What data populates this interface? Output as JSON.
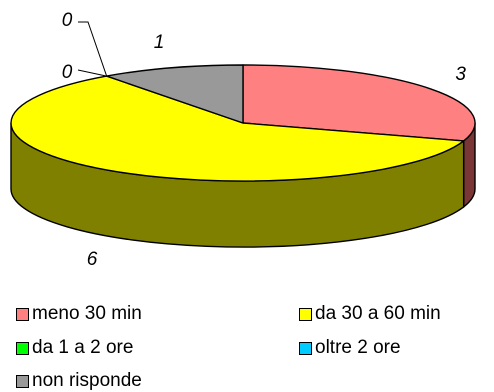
{
  "chart_data": {
    "type": "pie",
    "title": "",
    "categories": [
      "meno 30 min",
      "da 30 a 60 min",
      "da 1 a 2 ore",
      "oltre 2 ore",
      "non risponde"
    ],
    "values": [
      3,
      6,
      0,
      0,
      1
    ],
    "data_labels": [
      "3",
      "6",
      "0",
      "0",
      "1"
    ],
    "colors": [
      "#ff8080",
      "#ffff00",
      "#00ff00",
      "#00ccff",
      "#999999"
    ],
    "side_colors": [
      "#7a3535",
      "#808000",
      "#008000",
      "#006680",
      "#555555"
    ],
    "three_d": true,
    "legend_position": "bottom"
  },
  "legend": {
    "items": [
      {
        "label": "meno 30 min",
        "color": "#ff8080"
      },
      {
        "label": "da 30 a 60 min",
        "color": "#ffff00"
      },
      {
        "label": "da 1 a 2 ore",
        "color": "#00ff00"
      },
      {
        "label": "oltre 2 ore",
        "color": "#00ccff"
      },
      {
        "label": "non risponde",
        "color": "#999999"
      }
    ]
  }
}
